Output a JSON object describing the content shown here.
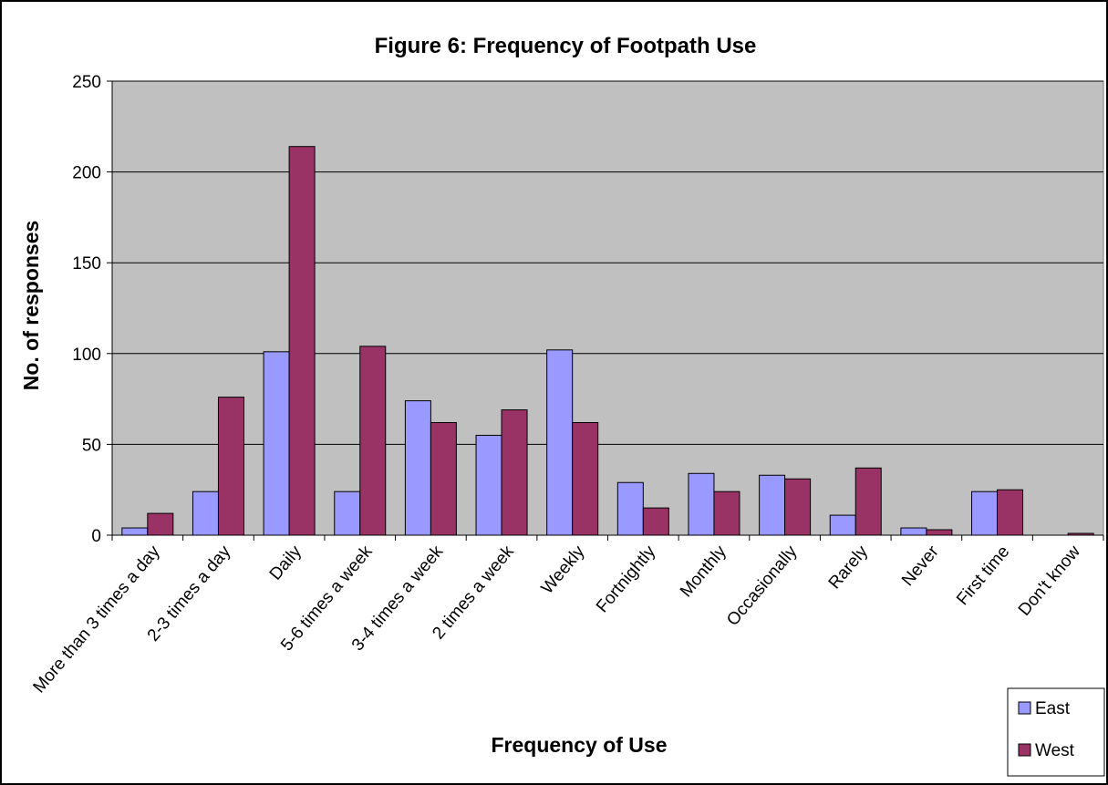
{
  "chart_data": {
    "type": "bar",
    "title": "Figure 6: Frequency of Footpath Use",
    "xlabel": "Frequency of Use",
    "ylabel": "No. of responses",
    "ylim": [
      0,
      250
    ],
    "yticks": [
      0,
      50,
      100,
      150,
      200,
      250
    ],
    "grid": true,
    "legend_position": "bottom-right",
    "categories": [
      "More than 3 times a day",
      "2-3 times a day",
      "Daily",
      "5-6 times a week",
      "3-4 times a week",
      "2 times a week",
      "Weekly",
      "Fortnightly",
      "Monthly",
      "Occasionally",
      "Rarely",
      "Never",
      "First time",
      "Don't know"
    ],
    "series": [
      {
        "name": "East",
        "color": "#9999ff",
        "values": [
          4,
          24,
          101,
          24,
          74,
          55,
          102,
          29,
          34,
          33,
          11,
          4,
          24,
          0
        ]
      },
      {
        "name": "West",
        "color": "#993366",
        "values": [
          12,
          76,
          214,
          104,
          62,
          69,
          62,
          15,
          24,
          31,
          37,
          3,
          25,
          1
        ]
      }
    ],
    "plot_background": "#c0c0c0"
  }
}
